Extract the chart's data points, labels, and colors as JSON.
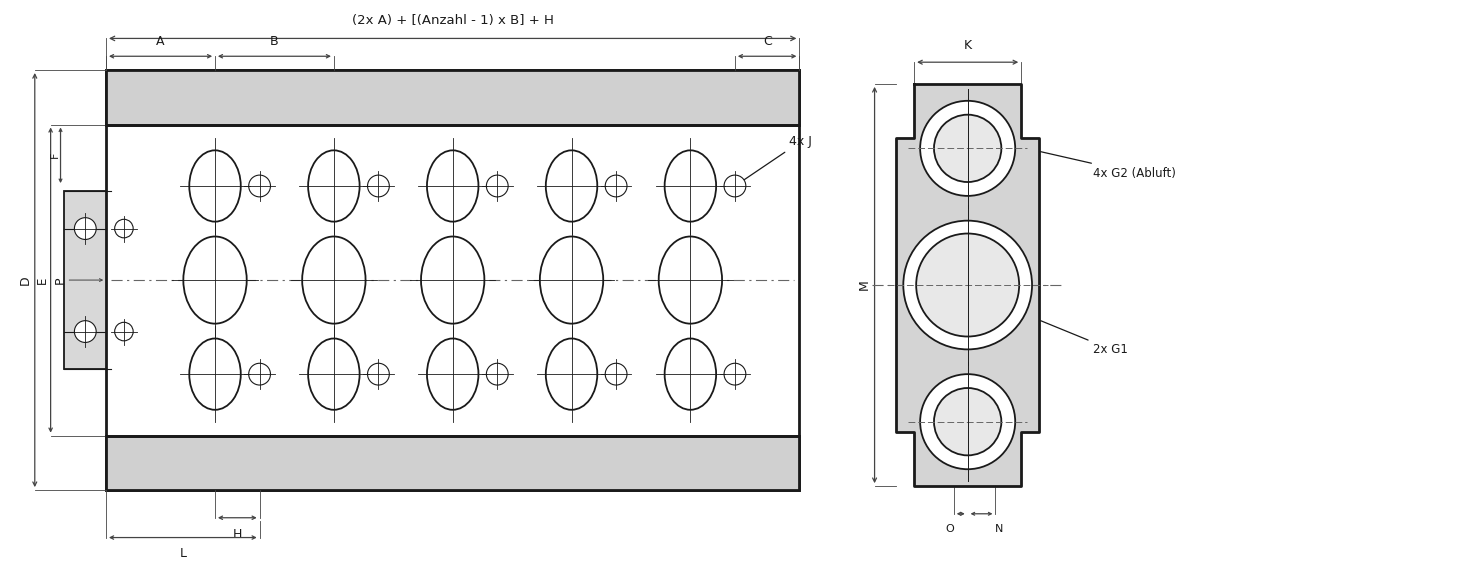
{
  "bg_color": "#ffffff",
  "line_color": "#1a1a1a",
  "dim_color": "#444444",
  "title_formula": "(2x A) + [(Anzahl - 1) x B] + H",
  "label_4xJ": "4x J",
  "label_4xG2": "4x G2 (Abluft)",
  "label_2xG1": "2x G1",
  "fig_w": 14.58,
  "fig_h": 5.74,
  "dpi": 100
}
